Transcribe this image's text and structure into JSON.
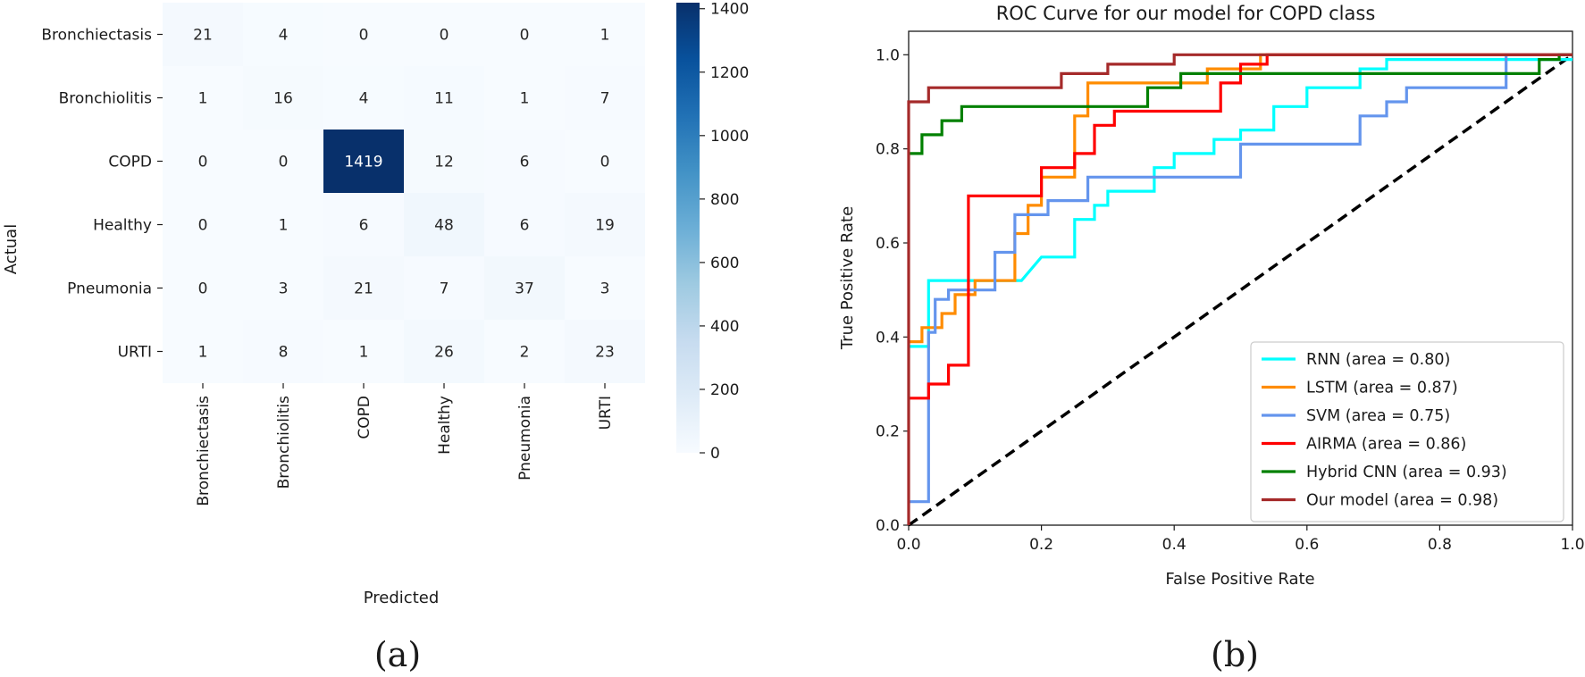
{
  "panels": {
    "a": "(a)",
    "b": "(b)"
  },
  "chart_data": [
    {
      "type": "heatmap",
      "title": "",
      "xlabel": "Predicted",
      "ylabel": "Actual",
      "x_categories": [
        "Bronchiectasis",
        "Bronchiolitis",
        "COPD",
        "Healthy",
        "Pneumonia",
        "URTI"
      ],
      "y_categories": [
        "Bronchiectasis",
        "Bronchiolitis",
        "COPD",
        "Healthy",
        "Pneumonia",
        "URTI"
      ],
      "values": [
        [
          21,
          4,
          0,
          0,
          0,
          1
        ],
        [
          1,
          16,
          4,
          11,
          1,
          7
        ],
        [
          0,
          0,
          1419,
          12,
          6,
          0
        ],
        [
          0,
          1,
          6,
          48,
          6,
          19
        ],
        [
          0,
          3,
          21,
          7,
          37,
          3
        ],
        [
          1,
          8,
          1,
          26,
          2,
          23
        ]
      ],
      "colormap": "Blues",
      "colorbar": {
        "range": [
          0,
          1419
        ],
        "ticks": [
          0,
          200,
          400,
          600,
          800,
          1000,
          1200,
          1400
        ]
      }
    },
    {
      "type": "line",
      "title": "ROC Curve for our model for COPD class",
      "xlabel": "False Positive Rate",
      "ylabel": "True Positive Rate",
      "xlim": [
        0,
        1
      ],
      "ylim": [
        0,
        1.05
      ],
      "xticks": [
        "0.0",
        "0.2",
        "0.4",
        "0.6",
        "0.8",
        "1.0"
      ],
      "yticks": [
        "0.0",
        "0.2",
        "0.4",
        "0.6",
        "0.8",
        "1.0"
      ],
      "grid": false,
      "legend_position": "lower-right",
      "series": [
        {
          "name": "RNN (area = 0.80)",
          "color": "#00ffff",
          "points": [
            [
              0,
              0.38
            ],
            [
              0.03,
              0.38
            ],
            [
              0.03,
              0.52
            ],
            [
              0.17,
              0.52
            ],
            [
              0.2,
              0.57
            ],
            [
              0.25,
              0.57
            ],
            [
              0.25,
              0.65
            ],
            [
              0.28,
              0.65
            ],
            [
              0.28,
              0.68
            ],
            [
              0.3,
              0.68
            ],
            [
              0.3,
              0.71
            ],
            [
              0.37,
              0.71
            ],
            [
              0.37,
              0.76
            ],
            [
              0.4,
              0.76
            ],
            [
              0.4,
              0.79
            ],
            [
              0.46,
              0.79
            ],
            [
              0.46,
              0.82
            ],
            [
              0.5,
              0.82
            ],
            [
              0.5,
              0.84
            ],
            [
              0.55,
              0.84
            ],
            [
              0.55,
              0.89
            ],
            [
              0.6,
              0.89
            ],
            [
              0.6,
              0.93
            ],
            [
              0.68,
              0.93
            ],
            [
              0.68,
              0.97
            ],
            [
              0.72,
              0.97
            ],
            [
              0.72,
              0.99
            ],
            [
              1,
              0.99
            ]
          ]
        },
        {
          "name": "LSTM (area = 0.87)",
          "color": "#ff8c00",
          "points": [
            [
              0,
              0.39
            ],
            [
              0.02,
              0.39
            ],
            [
              0.02,
              0.42
            ],
            [
              0.05,
              0.42
            ],
            [
              0.05,
              0.45
            ],
            [
              0.07,
              0.45
            ],
            [
              0.07,
              0.49
            ],
            [
              0.1,
              0.49
            ],
            [
              0.1,
              0.52
            ],
            [
              0.16,
              0.52
            ],
            [
              0.16,
              0.62
            ],
            [
              0.18,
              0.62
            ],
            [
              0.18,
              0.68
            ],
            [
              0.2,
              0.68
            ],
            [
              0.2,
              0.74
            ],
            [
              0.25,
              0.74
            ],
            [
              0.25,
              0.87
            ],
            [
              0.27,
              0.87
            ],
            [
              0.27,
              0.94
            ],
            [
              0.45,
              0.94
            ],
            [
              0.45,
              0.97
            ],
            [
              0.53,
              0.97
            ],
            [
              0.53,
              1.0
            ],
            [
              1,
              1.0
            ]
          ]
        },
        {
          "name": "SVM (area = 0.75)",
          "color": "#6495ed",
          "points": [
            [
              0,
              0.05
            ],
            [
              0.03,
              0.05
            ],
            [
              0.03,
              0.41
            ],
            [
              0.04,
              0.41
            ],
            [
              0.04,
              0.48
            ],
            [
              0.06,
              0.48
            ],
            [
              0.06,
              0.5
            ],
            [
              0.13,
              0.5
            ],
            [
              0.13,
              0.58
            ],
            [
              0.16,
              0.58
            ],
            [
              0.16,
              0.66
            ],
            [
              0.21,
              0.66
            ],
            [
              0.21,
              0.69
            ],
            [
              0.27,
              0.69
            ],
            [
              0.27,
              0.74
            ],
            [
              0.5,
              0.74
            ],
            [
              0.5,
              0.81
            ],
            [
              0.68,
              0.81
            ],
            [
              0.68,
              0.87
            ],
            [
              0.72,
              0.87
            ],
            [
              0.72,
              0.9
            ],
            [
              0.75,
              0.9
            ],
            [
              0.75,
              0.93
            ],
            [
              0.9,
              0.93
            ],
            [
              0.9,
              1.0
            ],
            [
              1,
              1.0
            ]
          ]
        },
        {
          "name": "AIRMA (area = 0.86)",
          "color": "#ff0000",
          "points": [
            [
              0,
              0.27
            ],
            [
              0.03,
              0.27
            ],
            [
              0.03,
              0.3
            ],
            [
              0.06,
              0.3
            ],
            [
              0.06,
              0.34
            ],
            [
              0.09,
              0.34
            ],
            [
              0.09,
              0.7
            ],
            [
              0.2,
              0.7
            ],
            [
              0.2,
              0.76
            ],
            [
              0.25,
              0.76
            ],
            [
              0.25,
              0.79
            ],
            [
              0.28,
              0.79
            ],
            [
              0.28,
              0.85
            ],
            [
              0.31,
              0.85
            ],
            [
              0.31,
              0.88
            ],
            [
              0.47,
              0.88
            ],
            [
              0.47,
              0.94
            ],
            [
              0.5,
              0.94
            ],
            [
              0.5,
              0.98
            ],
            [
              0.54,
              0.98
            ],
            [
              0.54,
              1.0
            ],
            [
              1,
              1.0
            ]
          ]
        },
        {
          "name": "Hybrid CNN (area = 0.93)",
          "color": "#008000",
          "points": [
            [
              0,
              0.79
            ],
            [
              0.02,
              0.79
            ],
            [
              0.02,
              0.83
            ],
            [
              0.05,
              0.83
            ],
            [
              0.05,
              0.86
            ],
            [
              0.08,
              0.86
            ],
            [
              0.08,
              0.89
            ],
            [
              0.36,
              0.89
            ],
            [
              0.36,
              0.93
            ],
            [
              0.41,
              0.93
            ],
            [
              0.41,
              0.96
            ],
            [
              0.95,
              0.96
            ],
            [
              0.95,
              0.99
            ],
            [
              0.98,
              0.99
            ],
            [
              0.98,
              1.0
            ],
            [
              1,
              1.0
            ]
          ]
        },
        {
          "name": "Our model (area = 0.98)",
          "color": "#a52a2a",
          "points": [
            [
              0,
              0.0
            ],
            [
              0,
              0.9
            ],
            [
              0.03,
              0.9
            ],
            [
              0.03,
              0.93
            ],
            [
              0.23,
              0.93
            ],
            [
              0.23,
              0.96
            ],
            [
              0.3,
              0.96
            ],
            [
              0.3,
              0.98
            ],
            [
              0.4,
              0.98
            ],
            [
              0.4,
              1.0
            ],
            [
              1,
              1.0
            ]
          ]
        }
      ],
      "reference_line": {
        "points": [
          [
            0,
            0
          ],
          [
            1,
            1
          ]
        ],
        "color": "#000000",
        "style": "dashed"
      }
    }
  ]
}
